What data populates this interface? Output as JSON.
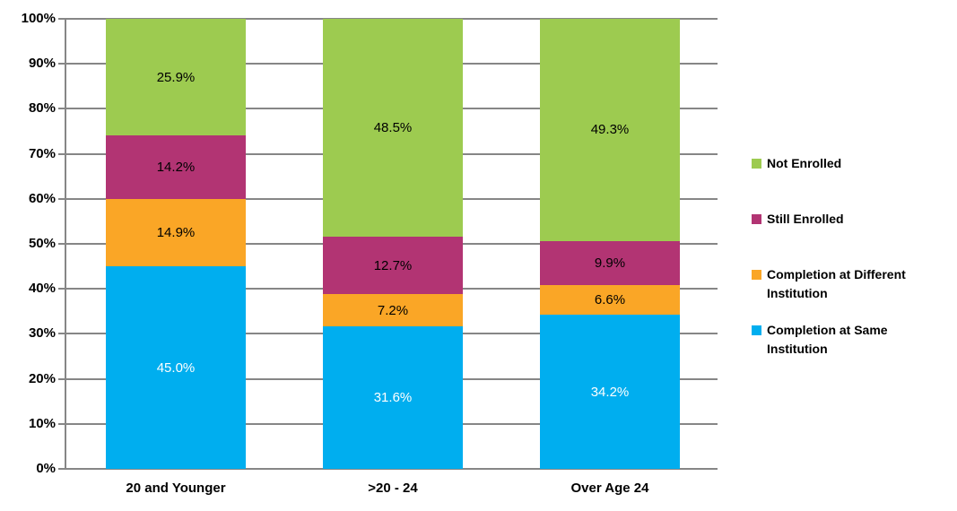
{
  "chart_data": {
    "type": "bar",
    "stacked": true,
    "title": "",
    "xlabel": "",
    "ylabel": "",
    "categories": [
      "20 and Younger",
      ">20 - 24",
      "Over Age 24"
    ],
    "series": [
      {
        "name": "Completion at Same Institution",
        "color": "#00AEEF",
        "label_color": "#FFFFFF",
        "values": [
          45.0,
          31.6,
          34.2
        ],
        "labels": [
          "45.0%",
          "31.6%",
          "34.2%"
        ]
      },
      {
        "name": "Completion at Different Institution",
        "color": "#FAA626",
        "label_color": "#000000",
        "values": [
          14.9,
          7.2,
          6.6
        ],
        "labels": [
          "14.9%",
          "7.2%",
          "6.6%"
        ]
      },
      {
        "name": "Still Enrolled",
        "color": "#B23473",
        "label_color": "#000000",
        "values": [
          14.2,
          12.7,
          9.9
        ],
        "labels": [
          "14.2%",
          "12.7%",
          "9.9%"
        ]
      },
      {
        "name": "Not Enrolled",
        "color": "#9DCB50",
        "label_color": "#000000",
        "values": [
          25.9,
          48.5,
          49.3
        ],
        "labels": [
          "25.9%",
          "48.5%",
          "49.3%"
        ]
      }
    ],
    "ylim": [
      0,
      100
    ],
    "y_ticks": [
      "0%",
      "10%",
      "20%",
      "30%",
      "40%",
      "50%",
      "60%",
      "70%",
      "80%",
      "90%",
      "100%"
    ],
    "grid": true,
    "legend_position": "right",
    "legend": [
      {
        "label": "Not Enrolled",
        "color": "#9DCB50"
      },
      {
        "label": "Still Enrolled",
        "color": "#B23473"
      },
      {
        "label": "Completion at Different Institution",
        "color": "#FAA626"
      },
      {
        "label": "Completion at Same Institution",
        "color": "#00AEEF"
      }
    ]
  },
  "colors": {
    "gridline": "#868686",
    "axis_text": "#000000",
    "background": "#FFFFFF"
  }
}
